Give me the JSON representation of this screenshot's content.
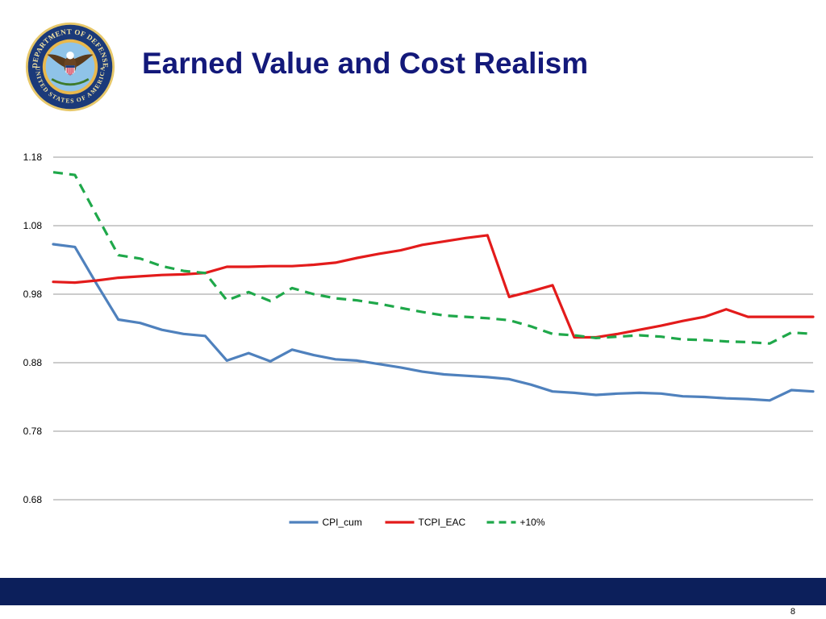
{
  "slide": {
    "title": "Earned Value and Cost Realism",
    "page_number": "8",
    "footer_color": "#0c1f5b",
    "title_color": "#13197a"
  },
  "logo": {
    "name": "seal-icon",
    "top_text": "DEPARTMENT OF DEFENSE",
    "bottom_text": "UNITED STATES OF AMERICA"
  },
  "chart_data": {
    "type": "line",
    "title": "",
    "xlabel": "",
    "ylabel": "",
    "ylim": [
      0.68,
      1.18
    ],
    "yticks": [
      "1.18",
      "1.08",
      "0.98",
      "0.88",
      "0.78",
      "0.68"
    ],
    "grid": true,
    "legend": "bottom-center",
    "x": [
      1,
      2,
      3,
      4,
      5,
      6,
      7,
      8,
      9,
      10,
      11,
      12,
      13,
      14,
      15,
      16,
      17,
      18,
      19,
      20,
      21,
      22,
      23,
      24,
      25,
      26,
      27,
      28,
      29,
      30,
      31,
      32,
      33,
      34,
      35,
      36
    ],
    "series": [
      {
        "name": "CPI_cum",
        "color": "#4f81bd",
        "style": "solid",
        "values": [
          1.053,
          1.049,
          0.995,
          0.943,
          0.938,
          0.928,
          0.922,
          0.919,
          0.883,
          0.894,
          0.882,
          0.899,
          0.891,
          0.885,
          0.883,
          0.878,
          0.873,
          0.867,
          0.863,
          0.861,
          0.859,
          0.856,
          0.848,
          0.838,
          0.836,
          0.833,
          0.835,
          0.836,
          0.835,
          0.831,
          0.83,
          0.828,
          0.827,
          0.825,
          0.84,
          0.838
        ]
      },
      {
        "name": "TCPI_EAC",
        "color": "#e31b1b",
        "style": "solid",
        "values": [
          0.998,
          0.997,
          1.0,
          1.004,
          1.006,
          1.008,
          1.009,
          1.011,
          1.02,
          1.02,
          1.021,
          1.021,
          1.023,
          1.026,
          1.033,
          1.039,
          1.044,
          1.052,
          1.057,
          1.062,
          1.066,
          0.976,
          0.984,
          0.993,
          0.917,
          0.917,
          0.922,
          0.928,
          0.934,
          0.941,
          0.947,
          0.958,
          0.947,
          0.947,
          0.947,
          0.947
        ]
      },
      {
        "name": "+10%",
        "color": "#1fa84a",
        "style": "dashed",
        "values": [
          1.158,
          1.154,
          1.095,
          1.037,
          1.032,
          1.021,
          1.014,
          1.011,
          0.971,
          0.983,
          0.97,
          0.989,
          0.98,
          0.974,
          0.971,
          0.966,
          0.96,
          0.954,
          0.949,
          0.947,
          0.945,
          0.942,
          0.933,
          0.922,
          0.92,
          0.916,
          0.918,
          0.92,
          0.918,
          0.914,
          0.913,
          0.911,
          0.91,
          0.908,
          0.924,
          0.922
        ]
      }
    ]
  }
}
